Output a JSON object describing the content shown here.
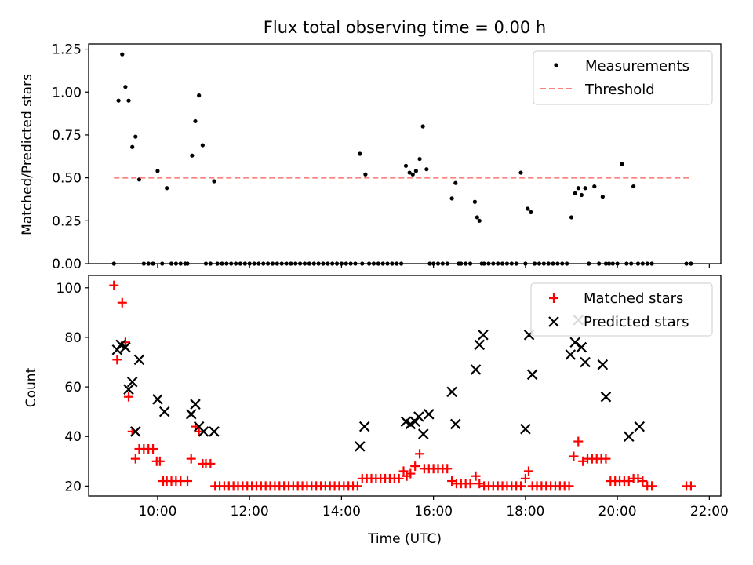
{
  "chart_data": [
    {
      "type": "scatter",
      "title": "Flux total observing time = 0.00 h",
      "xlabel": "",
      "ylabel": "Matched/Predicted stars",
      "xlim": [
        8.5,
        22.25
      ],
      "ylim": [
        0,
        1.28
      ],
      "yticks": [
        0,
        0.25,
        0.5,
        0.75,
        1.0,
        1.25
      ],
      "ytick_labels": [
        "0.00",
        "0.25",
        "0.50",
        "0.75",
        "1.00",
        "1.25"
      ],
      "grid": false,
      "legend": "top-right",
      "series": [
        {
          "name": "Measurements",
          "marker": "dot",
          "color": "#000000",
          "x": [
            9.05,
            9.15,
            9.23,
            9.3,
            9.37,
            9.45,
            9.52,
            9.6,
            9.7,
            9.8,
            9.9,
            10.0,
            10.1,
            10.2,
            10.3,
            10.4,
            10.5,
            10.6,
            10.65,
            10.75,
            10.82,
            10.9,
            10.98,
            11.05,
            11.15,
            11.23,
            11.3,
            11.4,
            11.5,
            11.6,
            11.7,
            11.8,
            11.9,
            12.0,
            12.1,
            12.2,
            12.3,
            12.4,
            12.5,
            12.6,
            12.7,
            12.8,
            12.9,
            13.0,
            13.1,
            13.2,
            13.3,
            13.4,
            13.5,
            13.6,
            13.7,
            13.8,
            13.9,
            14.0,
            14.1,
            14.2,
            14.3,
            14.4,
            14.45,
            14.52,
            14.6,
            14.7,
            14.8,
            14.9,
            15.0,
            15.1,
            15.2,
            15.3,
            15.4,
            15.48,
            15.55,
            15.62,
            15.7,
            15.77,
            15.85,
            15.92,
            16.0,
            16.1,
            16.2,
            16.3,
            16.4,
            16.48,
            16.55,
            16.6,
            16.7,
            16.8,
            16.9,
            16.95,
            17.0,
            17.05,
            17.1,
            17.2,
            17.3,
            17.4,
            17.5,
            17.6,
            17.7,
            17.8,
            17.9,
            18.0,
            18.05,
            18.12,
            18.2,
            18.3,
            18.4,
            18.5,
            18.6,
            18.7,
            18.8,
            18.9,
            19.0,
            19.08,
            19.15,
            19.22,
            19.3,
            19.38,
            19.5,
            19.6,
            19.68,
            19.75,
            19.82,
            19.9,
            20.0,
            20.1,
            20.2,
            20.3,
            20.35,
            20.45,
            20.55,
            20.65,
            20.75,
            21.5,
            21.6
          ],
          "y": [
            0,
            0.95,
            1.22,
            1.03,
            0.95,
            0.68,
            0.74,
            0.49,
            0,
            0,
            0,
            0.54,
            0,
            0.44,
            0,
            0,
            0,
            0,
            0,
            0.63,
            0.83,
            0.98,
            0.69,
            0,
            0,
            0.48,
            0,
            0,
            0,
            0,
            0,
            0,
            0,
            0,
            0,
            0,
            0,
            0,
            0,
            0,
            0,
            0,
            0,
            0,
            0,
            0,
            0,
            0,
            0,
            0,
            0,
            0,
            0,
            0,
            0,
            0,
            0,
            0.64,
            0,
            0.52,
            0,
            0,
            0,
            0,
            0,
            0,
            0,
            0,
            0.57,
            0.53,
            0.52,
            0.54,
            0.61,
            0.8,
            0.55,
            0,
            0,
            0,
            0,
            0,
            0.38,
            0.47,
            0,
            0,
            0,
            0,
            0.36,
            0.27,
            0.25,
            0,
            0,
            0,
            0,
            0,
            0,
            0,
            0,
            0,
            0.53,
            0,
            0.32,
            0.3,
            0,
            0,
            0,
            0,
            0,
            0,
            0,
            0,
            0.27,
            0.41,
            0.44,
            0.4,
            0.44,
            0,
            0.45,
            0,
            0.39,
            0,
            0,
            0,
            0,
            0.58,
            0,
            0,
            0.45,
            0,
            0,
            0,
            0,
            0,
            0
          ]
        },
        {
          "name": "Threshold",
          "marker": "dashed-line",
          "color": "#ff7f7f",
          "x": [
            9.05,
            21.6
          ],
          "y": [
            0.5,
            0.5
          ]
        }
      ]
    },
    {
      "type": "scatter",
      "title": "",
      "xlabel": "Time (UTC)",
      "ylabel": "Count",
      "xlim": [
        8.5,
        22.25
      ],
      "ylim": [
        16,
        105
      ],
      "xticks": [
        10,
        12,
        14,
        16,
        18,
        20,
        22
      ],
      "xtick_labels": [
        "10:00",
        "12:00",
        "14:00",
        "16:00",
        "18:00",
        "20:00",
        "22:00"
      ],
      "yticks": [
        20,
        40,
        60,
        80,
        100
      ],
      "ytick_labels": [
        "20",
        "40",
        "60",
        "80",
        "100"
      ],
      "grid": false,
      "legend": "top-right",
      "series": [
        {
          "name": "Matched stars",
          "marker": "plus",
          "color": "#ff0000",
          "x": [
            9.05,
            9.12,
            9.23,
            9.3,
            9.37,
            9.45,
            9.52,
            9.6,
            9.7,
            9.8,
            9.9,
            9.98,
            10.05,
            10.12,
            10.2,
            10.3,
            10.4,
            10.5,
            10.65,
            10.73,
            10.82,
            10.9,
            10.98,
            11.05,
            11.15,
            11.25,
            11.35,
            11.45,
            11.55,
            11.65,
            11.75,
            11.85,
            11.95,
            12.05,
            12.15,
            12.25,
            12.35,
            12.45,
            12.55,
            12.65,
            12.75,
            12.85,
            12.95,
            13.05,
            13.15,
            13.25,
            13.35,
            13.45,
            13.55,
            13.65,
            13.75,
            13.85,
            13.95,
            14.05,
            14.15,
            14.25,
            14.35,
            14.45,
            14.55,
            14.65,
            14.75,
            14.85,
            14.95,
            15.05,
            15.15,
            15.25,
            15.35,
            15.42,
            15.5,
            15.6,
            15.7,
            15.8,
            15.9,
            16.0,
            16.1,
            16.2,
            16.3,
            16.4,
            16.5,
            16.6,
            16.7,
            16.8,
            16.92,
            17.0,
            17.1,
            17.2,
            17.3,
            17.4,
            17.5,
            17.6,
            17.7,
            17.8,
            17.9,
            18.0,
            18.07,
            18.15,
            18.25,
            18.35,
            18.45,
            18.55,
            18.65,
            18.75,
            18.85,
            18.95,
            19.05,
            19.15,
            19.25,
            19.35,
            19.45,
            19.55,
            19.65,
            19.75,
            19.85,
            19.95,
            20.05,
            20.15,
            20.25,
            20.35,
            20.45,
            20.55,
            20.65,
            20.75,
            21.5,
            21.6
          ],
          "y": [
            101,
            71,
            94,
            78,
            56,
            42,
            31,
            35,
            35,
            35,
            35,
            30,
            30,
            22,
            22,
            22,
            22,
            22,
            22,
            31,
            44,
            42,
            29,
            29,
            29,
            20,
            20,
            20,
            20,
            20,
            20,
            20,
            20,
            20,
            20,
            20,
            20,
            20,
            20,
            20,
            20,
            20,
            20,
            20,
            20,
            20,
            20,
            20,
            20,
            20,
            20,
            20,
            20,
            20,
            20,
            20,
            20,
            23,
            23,
            23,
            23,
            23,
            23,
            23,
            23,
            23,
            26,
            24,
            25,
            28,
            33,
            27,
            27,
            27,
            27,
            27,
            27,
            22,
            21,
            21,
            21,
            21,
            24,
            21,
            20,
            20,
            20,
            20,
            20,
            20,
            20,
            20,
            20,
            23,
            26,
            20,
            20,
            20,
            20,
            20,
            20,
            20,
            20,
            20,
            32,
            38,
            30,
            31,
            31,
            31,
            31,
            31,
            22,
            22,
            22,
            22,
            22,
            23,
            23,
            22,
            20,
            20,
            20,
            20
          ]
        },
        {
          "name": "Predicted stars",
          "marker": "x",
          "color": "#000000",
          "x": [
            9.12,
            9.2,
            9.3,
            9.37,
            9.45,
            9.52,
            9.6,
            10.0,
            10.15,
            10.73,
            10.82,
            10.9,
            11.0,
            11.23,
            14.4,
            14.5,
            15.4,
            15.5,
            15.6,
            15.68,
            15.78,
            15.9,
            16.4,
            16.48,
            16.92,
            17.0,
            17.08,
            18.0,
            18.08,
            18.15,
            18.98,
            19.08,
            19.15,
            19.22,
            19.3,
            19.68,
            19.75,
            20.25,
            20.48
          ],
          "y": [
            75,
            77,
            76,
            59,
            62,
            42,
            71,
            55,
            50,
            49,
            53,
            44,
            42,
            42,
            36,
            44,
            46,
            45,
            46,
            48,
            41,
            49,
            58,
            45,
            67,
            77,
            81,
            43,
            81,
            65,
            73,
            78,
            87,
            76,
            70,
            69,
            56,
            40,
            44
          ]
        }
      ]
    }
  ]
}
